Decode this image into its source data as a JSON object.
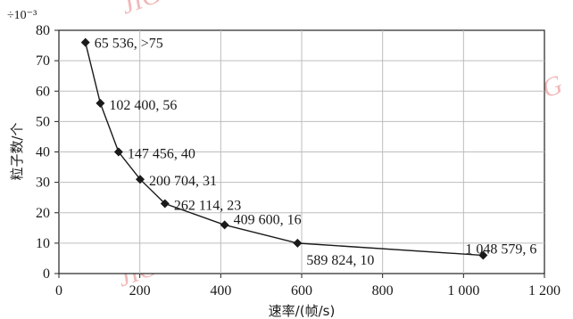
{
  "chart_data": {
    "type": "line",
    "scale_note": "÷10⁻³",
    "ylabel": "粒子数/个",
    "xlabel": "速率/(帧/s)",
    "xlim": [
      0,
      1200
    ],
    "ylim": [
      0,
      80
    ],
    "xticks": [
      "0",
      "200",
      "400",
      "600",
      "800",
      "1 000",
      "1 200"
    ],
    "xtick_values": [
      0,
      200,
      400,
      600,
      800,
      1000,
      1200
    ],
    "yticks": [
      "0",
      "10",
      "20",
      "30",
      "40",
      "50",
      "60",
      "70",
      "80"
    ],
    "ytick_values": [
      0,
      10,
      20,
      30,
      40,
      50,
      60,
      70,
      80
    ],
    "grid": true,
    "series": [
      {
        "points": [
          {
            "x": 65.536,
            "y": 76,
            "label": "65 536, >75"
          },
          {
            "x": 102.4,
            "y": 56,
            "label": "102 400, 56"
          },
          {
            "x": 147.456,
            "y": 40,
            "label": "147 456, 40"
          },
          {
            "x": 200.704,
            "y": 31,
            "label": "200 704, 31"
          },
          {
            "x": 262.114,
            "y": 23,
            "label": "262 114, 23"
          },
          {
            "x": 409.6,
            "y": 16,
            "label": "409 600, 16"
          },
          {
            "x": 589.824,
            "y": 10,
            "label": "589 824, 10"
          },
          {
            "x": 1048.579,
            "y": 6,
            "label": "1 048 579, 6"
          }
        ]
      }
    ],
    "watermarks": [
      "JIG",
      "JIG",
      "JIG",
      "JIG"
    ]
  }
}
